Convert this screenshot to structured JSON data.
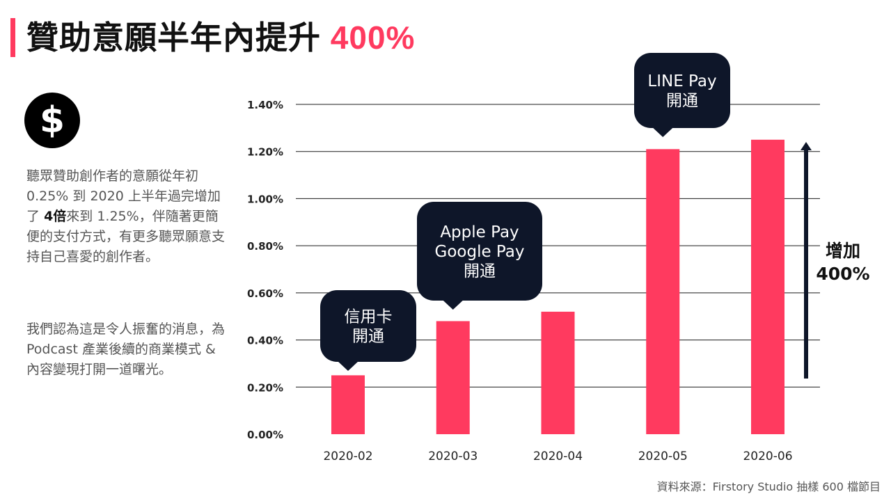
{
  "header": {
    "title": "贊助意願半年內提升",
    "title_highlight": "400%"
  },
  "icons": {
    "dollar": "dollar-circle-icon"
  },
  "body": {
    "para1_before": "聽眾贊助創作者的意願從年初 0.25% 到 2020 上半年過完增加了",
    "para1_bold": "4倍",
    "para1_after": "來到 1.25%，伴隨著更簡便的支付方式，有更多聽眾願意支持自己喜愛的創作者。",
    "para2": "我們認為這是令人振奮的消息，為 Podcast 產業後續的商業模式 & 內容變現打開一道曙光。"
  },
  "source": "資料來源：Firstory Studio 抽樣 600 檔節目",
  "colors": {
    "accent": "#ff3a5f",
    "bar": "#ff3a5f",
    "callout": "#0e1629",
    "arrow": "#0e1629"
  },
  "chart_data": {
    "type": "bar",
    "categories": [
      "2020-02",
      "2020-03",
      "2020-04",
      "2020-05",
      "2020-06"
    ],
    "values": [
      0.25,
      0.48,
      0.52,
      1.21,
      1.25
    ],
    "ylim": [
      0,
      1.4
    ],
    "yticks": [
      "0.00%",
      "0.20%",
      "0.40%",
      "0.60%",
      "0.80%",
      "1.00%",
      "1.20%",
      "1.40%"
    ],
    "grid": true,
    "callouts": [
      {
        "category": "2020-02",
        "lines": [
          "信用卡",
          "開通"
        ]
      },
      {
        "category": "2020-03",
        "lines": [
          "Apple Pay",
          "Google Pay",
          "開通"
        ]
      },
      {
        "category": "2020-05",
        "lines": [
          "LINE Pay",
          "開通"
        ]
      }
    ],
    "annotation": {
      "lines": [
        "增加",
        "400%"
      ]
    }
  }
}
